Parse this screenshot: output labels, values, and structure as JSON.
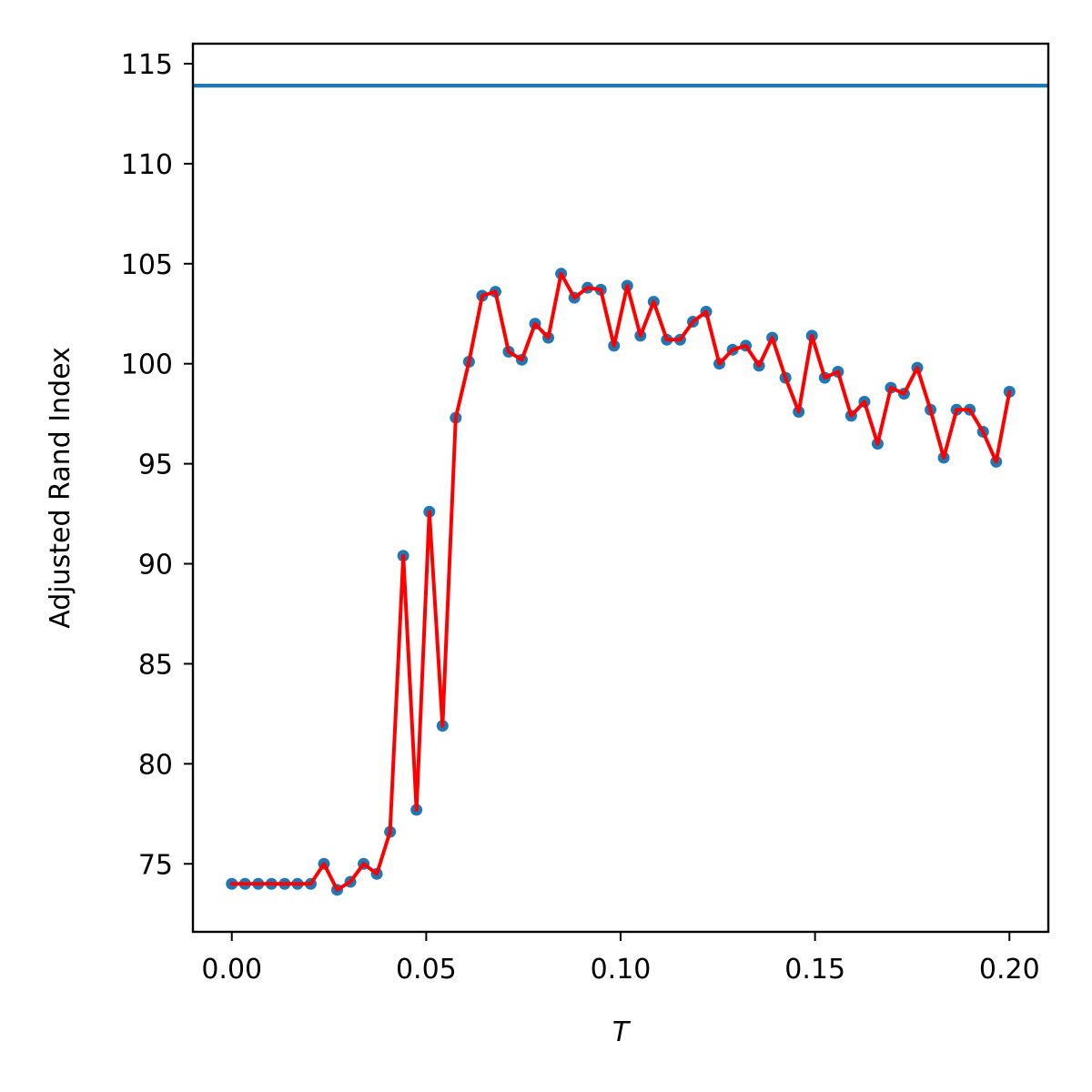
{
  "chart_data": {
    "type": "line",
    "xlabel": "T",
    "ylabel": "Adjusted Rand Index",
    "xlim": [
      -0.01,
      0.21
    ],
    "ylim": [
      71.6,
      116.0
    ],
    "xticks": [
      0.0,
      0.05,
      0.1,
      0.15,
      0.2
    ],
    "xtick_labels": [
      "0.00",
      "0.05",
      "0.10",
      "0.15",
      "0.20"
    ],
    "yticks": [
      75,
      80,
      85,
      90,
      95,
      100,
      105,
      110,
      115
    ],
    "ytick_labels": [
      "75",
      "80",
      "85",
      "90",
      "95",
      "100",
      "105",
      "110",
      "115"
    ],
    "grid": false,
    "colors": {
      "scatter": "#1f77b4",
      "line": "#ff0000",
      "reference_line": "#1f77b4"
    },
    "reference_line": {
      "y": 113.9
    },
    "series": [
      {
        "x": [
          0.0,
          0.0034,
          0.0068,
          0.0102,
          0.0136,
          0.0169,
          0.0203,
          0.0237,
          0.0271,
          0.0305,
          0.0339,
          0.0373,
          0.0407,
          0.0441,
          0.0475,
          0.0508,
          0.0542,
          0.0576,
          0.061,
          0.0644,
          0.0678,
          0.0712,
          0.0746,
          0.078,
          0.0814,
          0.0847,
          0.0881,
          0.0915,
          0.0949,
          0.0983,
          0.1017,
          0.1051,
          0.1085,
          0.1119,
          0.1153,
          0.1186,
          0.122,
          0.1254,
          0.1288,
          0.1322,
          0.1356,
          0.139,
          0.1424,
          0.1458,
          0.1492,
          0.1525,
          0.1559,
          0.1593,
          0.1627,
          0.1661,
          0.1695,
          0.1729,
          0.1763,
          0.1797,
          0.1831,
          0.1864,
          0.1898,
          0.1932,
          0.1966,
          0.2
        ],
        "y": [
          74.0,
          74.0,
          74.0,
          74.0,
          74.0,
          74.0,
          74.0,
          75.0,
          73.7,
          74.1,
          75.0,
          74.5,
          76.6,
          90.4,
          77.7,
          92.6,
          81.9,
          97.3,
          100.1,
          103.4,
          103.6,
          100.6,
          100.2,
          102.0,
          101.3,
          104.5,
          103.3,
          103.8,
          103.7,
          100.9,
          103.9,
          101.4,
          103.1,
          101.2,
          101.2,
          102.1,
          102.6,
          100.0,
          100.7,
          100.9,
          99.9,
          101.3,
          99.3,
          97.6,
          101.4,
          99.3,
          99.6,
          97.4,
          98.1,
          96.0,
          98.8,
          98.5,
          99.8,
          97.7,
          95.3,
          97.7,
          97.7,
          96.6,
          95.1,
          98.6
        ]
      }
    ]
  }
}
